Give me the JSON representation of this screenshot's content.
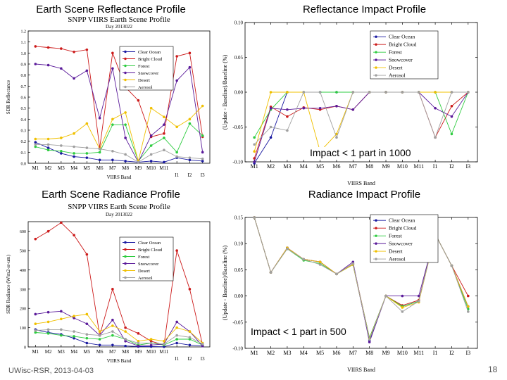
{
  "headings": {
    "earth_refl": "Earth Scene Reflectance Profile",
    "refl_impact": "Reflectance Impact Profile",
    "earth_rad": "Earth Scene Radiance Profile",
    "rad_impact": "Radiance Impact Profile"
  },
  "notes": {
    "refl": "Impact < 1 part in 1000",
    "rad": "Impact < 1 part in 500"
  },
  "footer": "UWisc-RSR, 2013-04-03",
  "page_number": "18",
  "series_colors": {
    "Clear Ocean": "#1a1aa0",
    "Bright Cloud": "#cc1a1a",
    "Forest": "#2ecc40",
    "Snowcover": "#5a1a9a",
    "Desert": "#f0c000",
    "Aerosol": "#a0a0a0"
  },
  "chart_data": [
    {
      "id": "earth_refl",
      "type": "line",
      "title": "SNPP VIIRS Earth Scene Profile",
      "subtitle": "Day 2013022",
      "xlabel": "VIIRS Band",
      "ylabel": "SDR Reflectance",
      "categories": [
        "M1",
        "M2",
        "M3",
        "M4",
        "M5",
        "M6",
        "M7",
        "M8",
        "M9",
        "M10",
        "M11",
        "I1",
        "I2",
        "I3"
      ],
      "tick_labels_outside": [
        "I1",
        "I2",
        "I3"
      ],
      "ylim": [
        0,
        1.2
      ],
      "yticks": [
        0,
        0.1,
        0.2,
        0.3,
        0.4,
        0.5,
        0.6,
        0.7,
        0.8,
        0.9,
        1.0,
        1.1,
        1.2
      ],
      "ytick_labels": [
        "0.0",
        "0.1",
        "0.2",
        "0.3",
        "0.4",
        "0.5",
        "0.6",
        "0.7",
        "0.8",
        "0.9",
        "1.0",
        "1.1",
        "1.2"
      ],
      "series": [
        {
          "name": "Clear Ocean",
          "values": [
            0.19,
            0.14,
            0.09,
            0.06,
            0.05,
            0.03,
            0.03,
            0.02,
            0.01,
            0.02,
            0.01,
            0.05,
            0.03,
            0.02
          ]
        },
        {
          "name": "Bright Cloud",
          "values": [
            1.06,
            1.05,
            1.04,
            1.01,
            1.03,
            0.14,
            1.0,
            0.69,
            0.57,
            0.24,
            0.27,
            0.97,
            1.0,
            0.24
          ]
        },
        {
          "name": "Forest",
          "values": [
            0.15,
            0.12,
            0.11,
            0.09,
            0.09,
            0.1,
            0.35,
            0.35,
            0.02,
            0.16,
            0.23,
            0.1,
            0.36,
            0.25
          ]
        },
        {
          "name": "Snowcover",
          "values": [
            0.9,
            0.89,
            0.86,
            0.77,
            0.84,
            0.41,
            0.86,
            0.23,
            0.01,
            0.25,
            0.35,
            0.75,
            0.87,
            0.1
          ]
        },
        {
          "name": "Desert",
          "values": [
            0.22,
            0.22,
            0.23,
            0.27,
            0.36,
            0.13,
            0.4,
            0.46,
            0.02,
            0.5,
            0.42,
            0.33,
            0.4,
            0.52
          ]
        },
        {
          "name": "Aerosol",
          "values": [
            0.17,
            0.17,
            0.16,
            0.15,
            0.14,
            0.13,
            0.11,
            0.08,
            0.01,
            0.08,
            0.12,
            0.06,
            0.05,
            0.04
          ]
        }
      ]
    },
    {
      "id": "refl_impact",
      "type": "line",
      "title": "",
      "xlabel": "VIIRS Band",
      "ylabel": "(Update - Baseline)/Baseline (%)",
      "categories": [
        "M1",
        "M2",
        "M3",
        "M4",
        "M5",
        "M6",
        "M7",
        "M8",
        "M9",
        "M10",
        "M11",
        "I1",
        "I2",
        "I3"
      ],
      "ylim": [
        -0.1,
        0.1
      ],
      "yticks": [
        -0.1,
        -0.05,
        0,
        0.05,
        0.1
      ],
      "ytick_labels": [
        "-0.10",
        "-0.05",
        "0.00",
        "0.05",
        "0.10"
      ],
      "series": [
        {
          "name": "Clear Ocean",
          "values": [
            -0.102,
            -0.065,
            0,
            0,
            0,
            0,
            0,
            0,
            0,
            0,
            0,
            0,
            0,
            0
          ]
        },
        {
          "name": "Bright Cloud",
          "values": [
            -0.095,
            -0.021,
            -0.035,
            -0.022,
            -0.025,
            -0.02,
            -0.025,
            0,
            0,
            0,
            0,
            -0.065,
            -0.02,
            0
          ]
        },
        {
          "name": "Forest",
          "values": [
            -0.065,
            -0.025,
            0,
            0,
            0,
            0,
            0,
            0,
            0,
            0,
            0,
            0,
            -0.06,
            0
          ]
        },
        {
          "name": "Snowcover",
          "values": [
            -0.1,
            -0.023,
            -0.025,
            -0.023,
            -0.023,
            -0.02,
            -0.025,
            0,
            0,
            0,
            0,
            -0.023,
            -0.035,
            0
          ]
        },
        {
          "name": "Desert",
          "values": [
            -0.085,
            0,
            0,
            0,
            -0.085,
            -0.06,
            0,
            0,
            0,
            0,
            0,
            0,
            0,
            0
          ]
        },
        {
          "name": "Aerosol",
          "values": [
            -0.075,
            -0.05,
            -0.055,
            0,
            0,
            -0.065,
            0,
            0,
            0,
            0,
            0,
            -0.065,
            0,
            0
          ]
        }
      ]
    },
    {
      "id": "earth_rad",
      "type": "line",
      "title": "SNPP VIIRS Earth Scene Profile",
      "subtitle": "Day 2013022",
      "xlabel": "VIIRS Band",
      "ylabel": "SDR Radiance (W/m2-sr-um)",
      "categories": [
        "M1",
        "M2",
        "M3",
        "M4",
        "M5",
        "M6",
        "M7",
        "M8",
        "M9",
        "M10",
        "M11",
        "I1",
        "I2",
        "I3"
      ],
      "tick_labels_outside": [
        "I1",
        "I2",
        "I3"
      ],
      "ylim": [
        0,
        650
      ],
      "yticks": [
        0,
        100,
        200,
        300,
        400,
        500,
        600
      ],
      "ytick_labels": [
        "0",
        "100",
        "200",
        "300",
        "400",
        "500",
        "600"
      ],
      "series": [
        {
          "name": "Clear Ocean",
          "values": [
            90,
            75,
            65,
            45,
            20,
            10,
            10,
            5,
            2,
            2,
            1,
            20,
            10,
            5
          ]
        },
        {
          "name": "Bright Cloud",
          "values": [
            560,
            600,
            645,
            580,
            480,
            60,
            300,
            100,
            70,
            30,
            10,
            500,
            300,
            10
          ]
        },
        {
          "name": "Forest",
          "values": [
            75,
            70,
            60,
            55,
            45,
            40,
            60,
            40,
            10,
            20,
            10,
            40,
            40,
            10
          ]
        },
        {
          "name": "Snowcover",
          "values": [
            170,
            180,
            185,
            150,
            120,
            60,
            140,
            30,
            5,
            10,
            15,
            130,
            80,
            5
          ]
        },
        {
          "name": "Desert",
          "values": [
            120,
            130,
            145,
            160,
            170,
            80,
            110,
            80,
            30,
            40,
            30,
            100,
            80,
            20
          ]
        },
        {
          "name": "Aerosol",
          "values": [
            85,
            90,
            90,
            80,
            65,
            60,
            80,
            40,
            20,
            20,
            15,
            60,
            50,
            15
          ]
        }
      ]
    },
    {
      "id": "rad_impact",
      "type": "line",
      "title": "",
      "xlabel": "VIIRS Band",
      "ylabel": "(Update - Baseline)/Baseline (%)",
      "categories": [
        "M1",
        "M2",
        "M3",
        "M4",
        "M5",
        "M6",
        "M7",
        "M8",
        "M9",
        "M10",
        "M11",
        "I1",
        "I2",
        "I3"
      ],
      "ylim": [
        -0.1,
        0.15
      ],
      "yticks": [
        -0.1,
        -0.05,
        0,
        0.05,
        0.1,
        0.15
      ],
      "ytick_labels": [
        "-0.10",
        "-0.05",
        "0.00",
        "0.05",
        "0.10",
        "0.15"
      ],
      "series": [
        {
          "name": "Clear Ocean",
          "values": [
            0.15,
            0.045,
            0.092,
            0.07,
            0.065,
            0.042,
            0.06,
            -0.085,
            0.0,
            -0.02,
            -0.01,
            0.118,
            0.058,
            -0.02
          ]
        },
        {
          "name": "Bright Cloud",
          "values": [
            0.15,
            0.045,
            0.092,
            0.07,
            0.065,
            0.042,
            0.062,
            -0.08,
            0.0,
            -0.018,
            -0.008,
            0.118,
            0.058,
            0.0
          ]
        },
        {
          "name": "Forest",
          "values": [
            0.15,
            0.045,
            0.09,
            0.068,
            0.062,
            0.042,
            0.06,
            -0.08,
            0.0,
            -0.02,
            -0.01,
            0.118,
            0.058,
            -0.025
          ]
        },
        {
          "name": "Snowcover",
          "values": [
            0.15,
            0.045,
            0.092,
            0.07,
            0.065,
            0.042,
            0.065,
            -0.088,
            0.0,
            0.0,
            0.0,
            0.118,
            0.058,
            -0.02
          ]
        },
        {
          "name": "Desert",
          "values": [
            0.15,
            0.045,
            0.092,
            0.07,
            0.065,
            0.042,
            0.06,
            -0.082,
            0.0,
            -0.022,
            -0.012,
            0.118,
            0.058,
            -0.02
          ]
        },
        {
          "name": "Aerosol",
          "values": [
            0.15,
            0.045,
            0.09,
            0.07,
            0.06,
            0.042,
            0.062,
            -0.083,
            0.0,
            -0.03,
            -0.01,
            0.118,
            0.058,
            -0.03
          ]
        }
      ]
    }
  ]
}
